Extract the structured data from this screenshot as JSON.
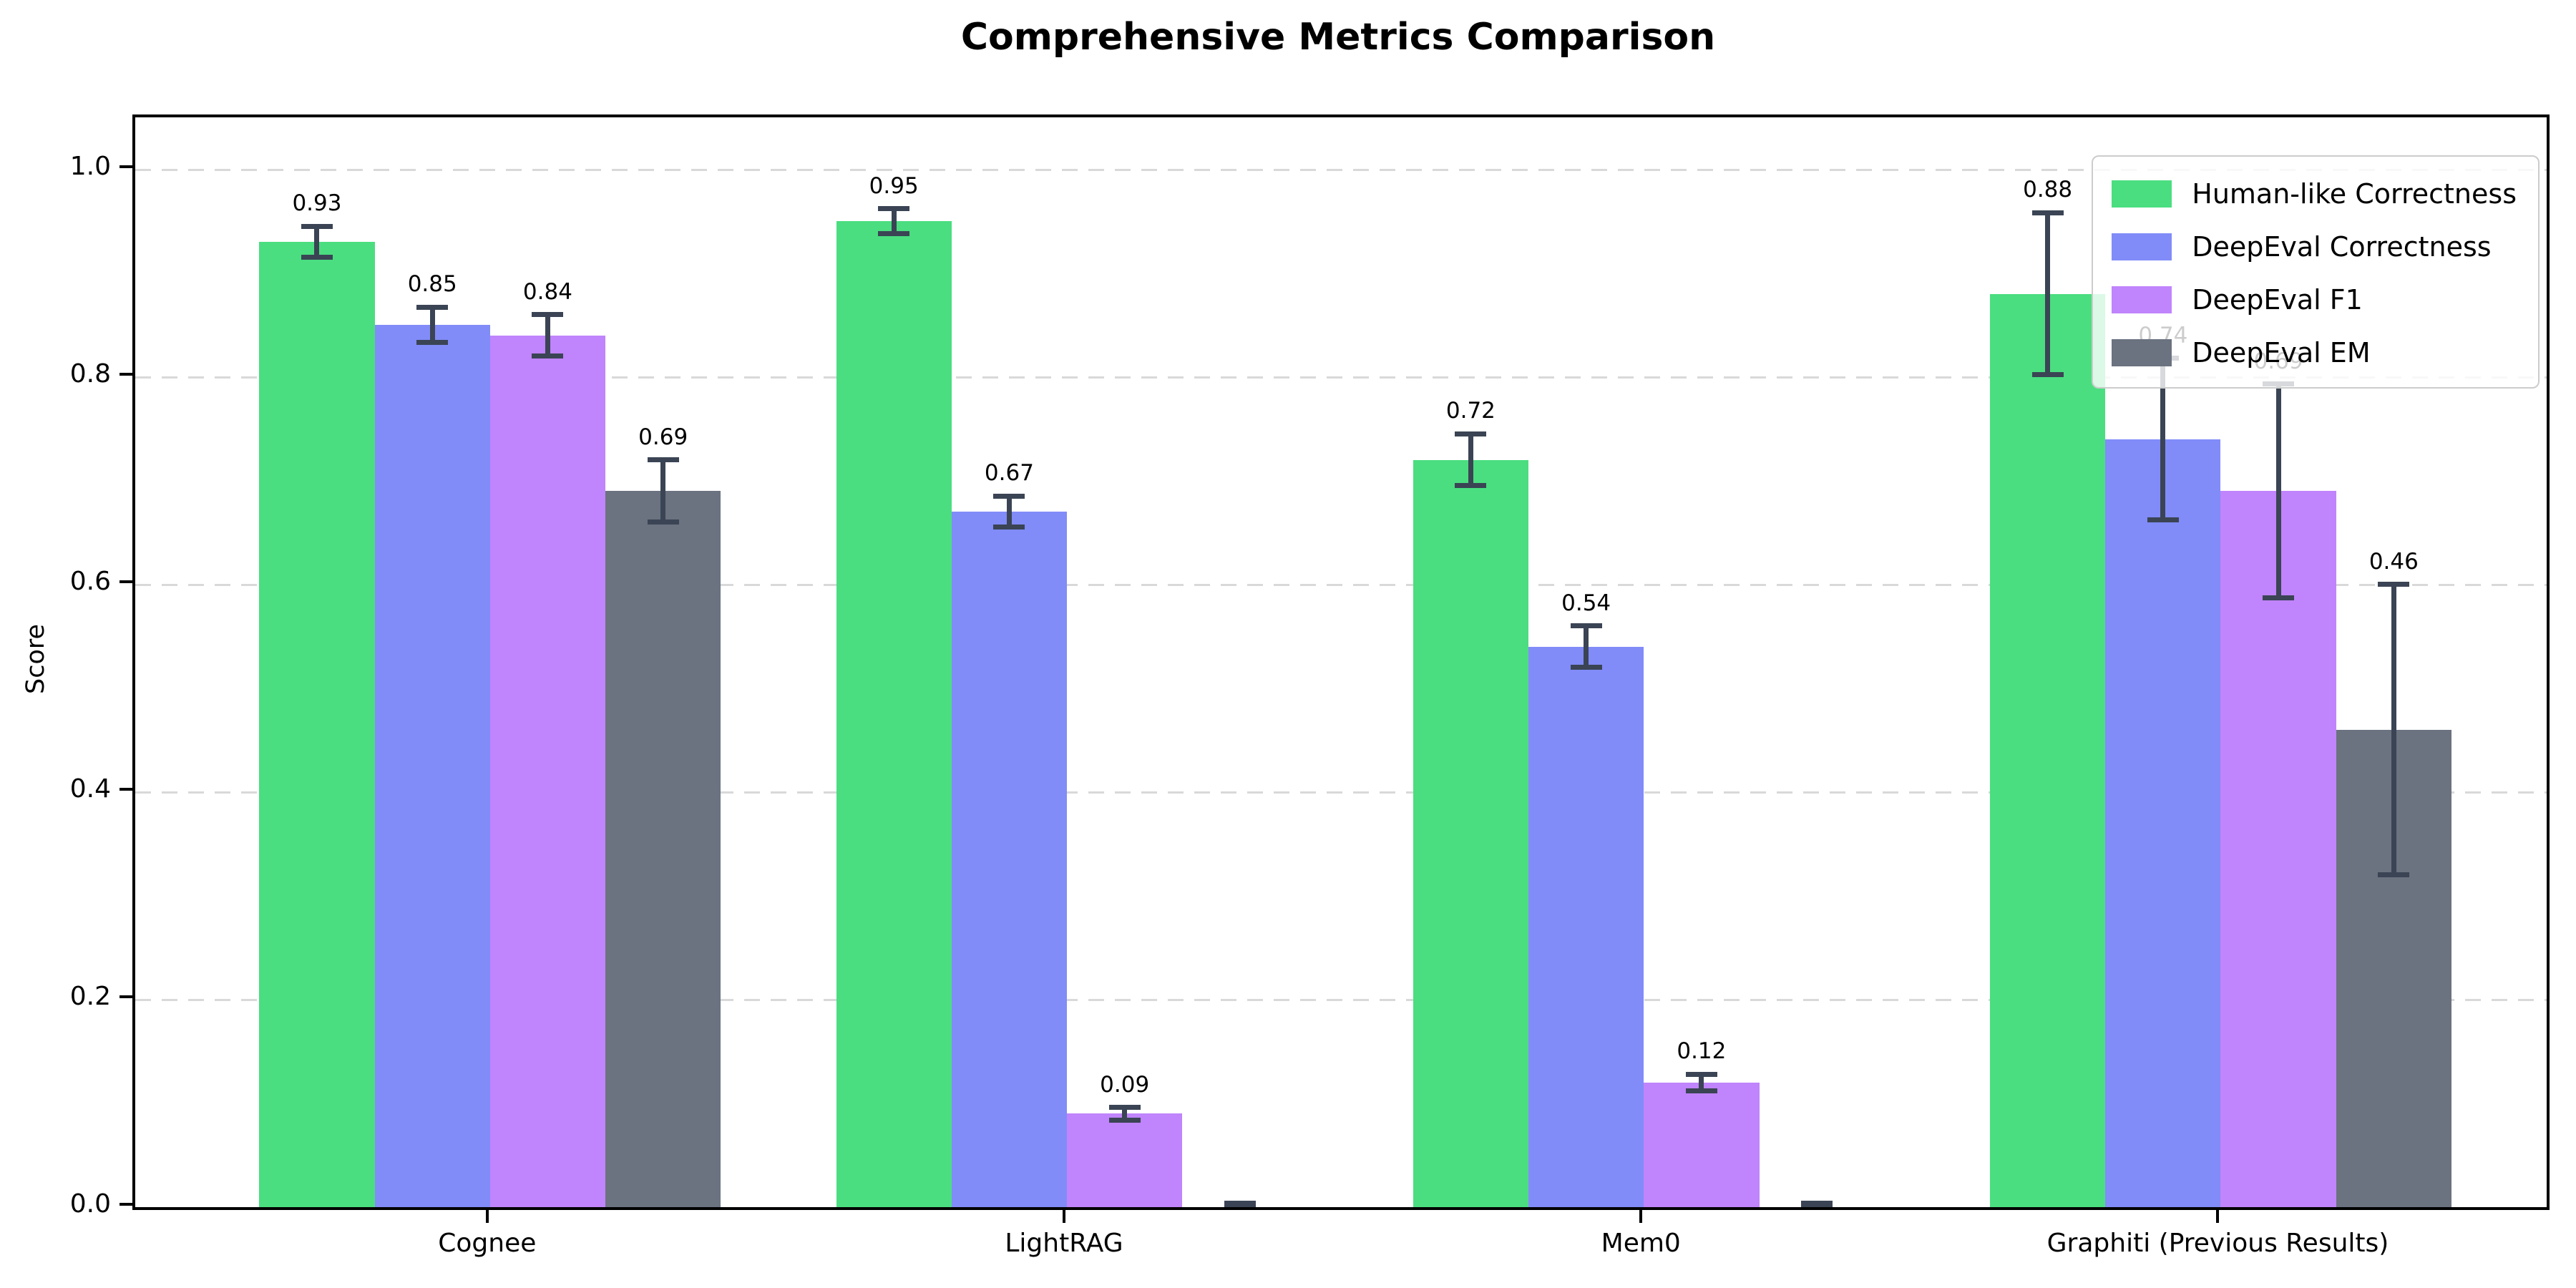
{
  "chart_data": {
    "type": "bar",
    "title": "Comprehensive Metrics Comparison",
    "ylabel": "Score",
    "categories": [
      "Cognee",
      "LightRAG",
      "Mem0",
      "Graphiti (Previous Results)"
    ],
    "series": [
      {
        "name": "Human-like Correctness",
        "color": "#4ade80",
        "values": [
          0.93,
          0.95,
          0.72,
          0.88
        ],
        "errors": [
          0.015,
          0.012,
          0.025,
          0.078
        ],
        "labels": [
          "0.93",
          "0.95",
          "0.72",
          "0.88"
        ]
      },
      {
        "name": "DeepEval Correctness",
        "color": "#818cf8",
        "values": [
          0.85,
          0.67,
          0.54,
          0.74
        ],
        "errors": [
          0.017,
          0.015,
          0.02,
          0.078
        ],
        "labels": [
          "0.85",
          "0.67",
          "0.54",
          "0.74"
        ]
      },
      {
        "name": "DeepEval F1",
        "color": "#c084fc",
        "values": [
          0.84,
          0.09,
          0.12,
          0.69
        ],
        "errors": [
          0.02,
          0.006,
          0.008,
          0.103
        ],
        "labels": [
          "0.84",
          "0.09",
          "0.12",
          "0.69"
        ]
      },
      {
        "name": "DeepEval EM",
        "color": "#6b7280",
        "values": [
          0.69,
          0.0,
          0.0,
          0.46
        ],
        "errors": [
          0.03,
          0.004,
          0.004,
          0.14
        ],
        "labels": [
          "0.69",
          "",
          "",
          "0.46"
        ]
      }
    ],
    "ytick_labels": [
      "0.0",
      "0.2",
      "0.4",
      "0.6",
      "0.8",
      "1.0"
    ],
    "ytick_values": [
      0.0,
      0.2,
      0.4,
      0.6,
      0.8,
      1.0
    ],
    "ylim": [
      0,
      1.05
    ],
    "grid": "horizontal-dashed",
    "legend_position": "upper-right",
    "colors": {
      "errorbar": "#3a4454",
      "gridline": "#d9d9d9",
      "spine": "#000000",
      "background": "#ffffff"
    }
  }
}
